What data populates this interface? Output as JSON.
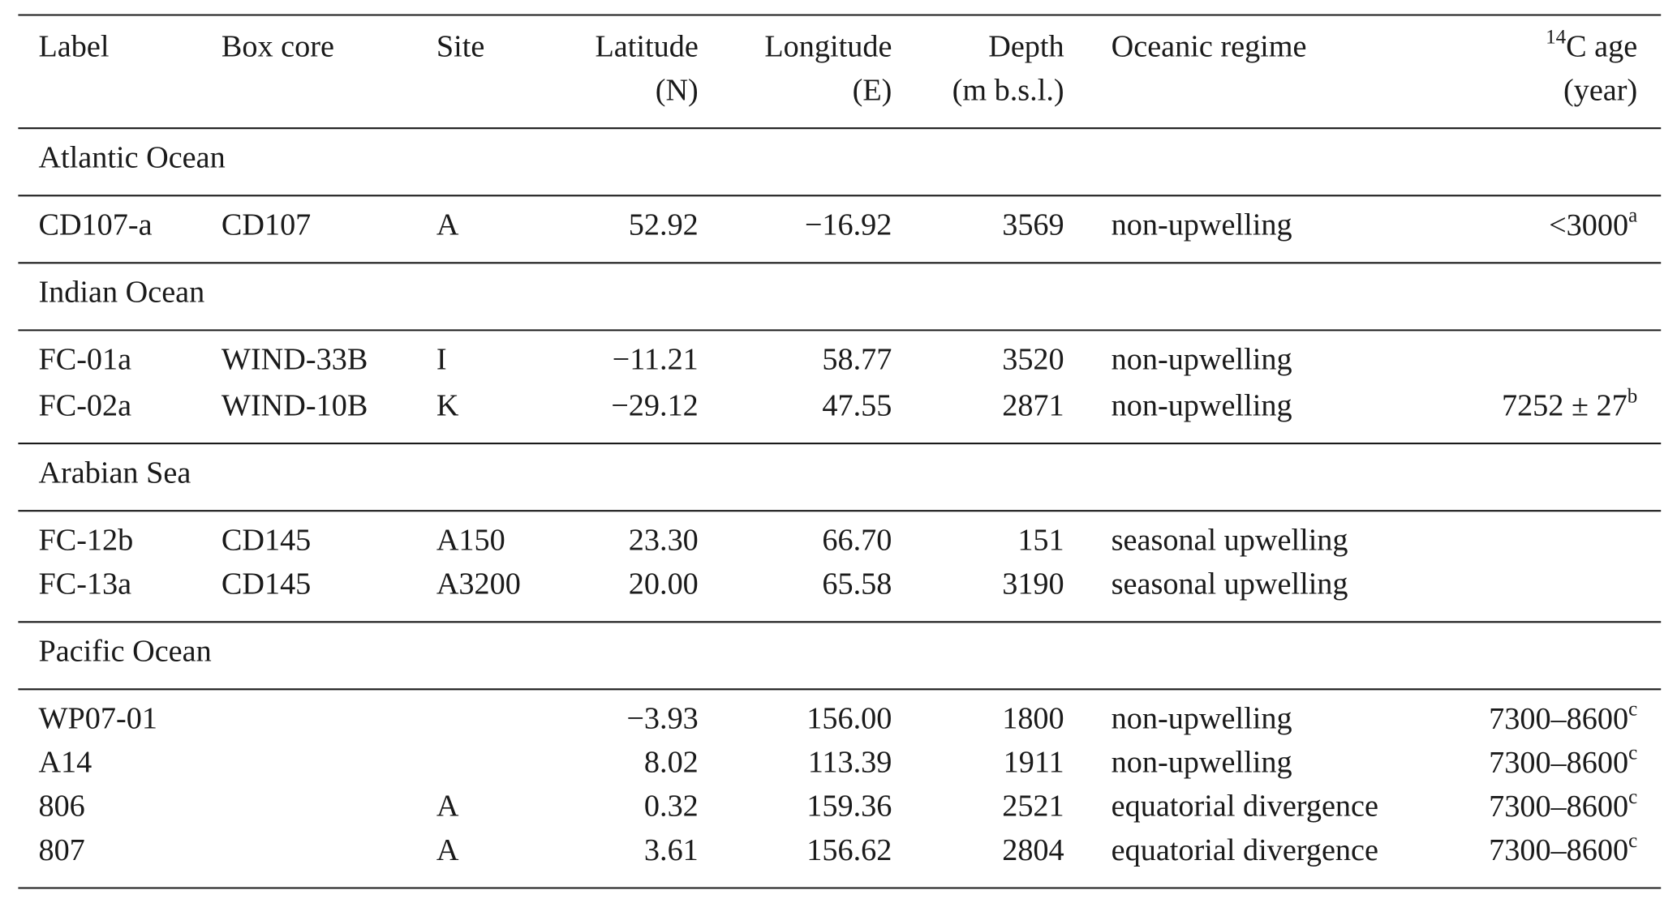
{
  "table": {
    "header": [
      {
        "lines": [
          "Label"
        ]
      },
      {
        "lines": [
          "Box core"
        ]
      },
      {
        "lines": [
          "Site"
        ]
      },
      {
        "lines": [
          "Latitude",
          "(N)"
        ]
      },
      {
        "lines": [
          "Longitude",
          "(E)"
        ]
      },
      {
        "lines": [
          "Depth",
          "(m b.s.l.)"
        ]
      },
      {
        "lines": [
          "Oceanic regime"
        ]
      },
      {
        "lines": [
          {
            "pre": "14",
            "text": "C age"
          },
          "(year)"
        ]
      }
    ],
    "groups": [
      {
        "title": "Atlantic Ocean",
        "rows": [
          [
            "CD107-a",
            "CD107",
            "A",
            "52.92",
            "−16.92",
            "3569",
            "non-upwelling",
            {
              "text": "<3000",
              "note": "a"
            }
          ]
        ]
      },
      {
        "title": "Indian Ocean",
        "rows": [
          [
            "FC-01a",
            "WIND-33B",
            "I",
            "−11.21",
            "58.77",
            "3520",
            "non-upwelling",
            null
          ],
          [
            "FC-02a",
            "WIND-10B",
            "K",
            "−29.12",
            "47.55",
            "2871",
            "non-upwelling",
            {
              "text": "7252 ± 27",
              "note": "b"
            }
          ]
        ]
      },
      {
        "title": "Arabian Sea",
        "rows": [
          [
            "FC-12b",
            "CD145",
            "A150",
            "23.30",
            "66.70",
            "151",
            "seasonal upwelling",
            null
          ],
          [
            "FC-13a",
            "CD145",
            "A3200",
            "20.00",
            "65.58",
            "3190",
            "seasonal upwelling",
            null
          ]
        ]
      },
      {
        "title": "Pacific Ocean",
        "rows": [
          [
            "WP07-01",
            null,
            null,
            "−3.93",
            "156.00",
            "1800",
            "non-upwelling",
            {
              "text": "7300–8600",
              "note": "c"
            }
          ],
          [
            "A14",
            null,
            null,
            "8.02",
            "113.39",
            "1911",
            "non-upwelling",
            {
              "text": "7300–8600",
              "note": "c"
            }
          ],
          [
            "806",
            null,
            "A",
            "0.32",
            "159.36",
            "2521",
            "equatorial divergence",
            {
              "text": "7300–8600",
              "note": "c"
            }
          ],
          [
            "807",
            null,
            "A",
            "3.61",
            "156.62",
            "2804",
            "equatorial divergence",
            {
              "text": "7300–8600",
              "note": "c"
            }
          ]
        ]
      }
    ]
  }
}
